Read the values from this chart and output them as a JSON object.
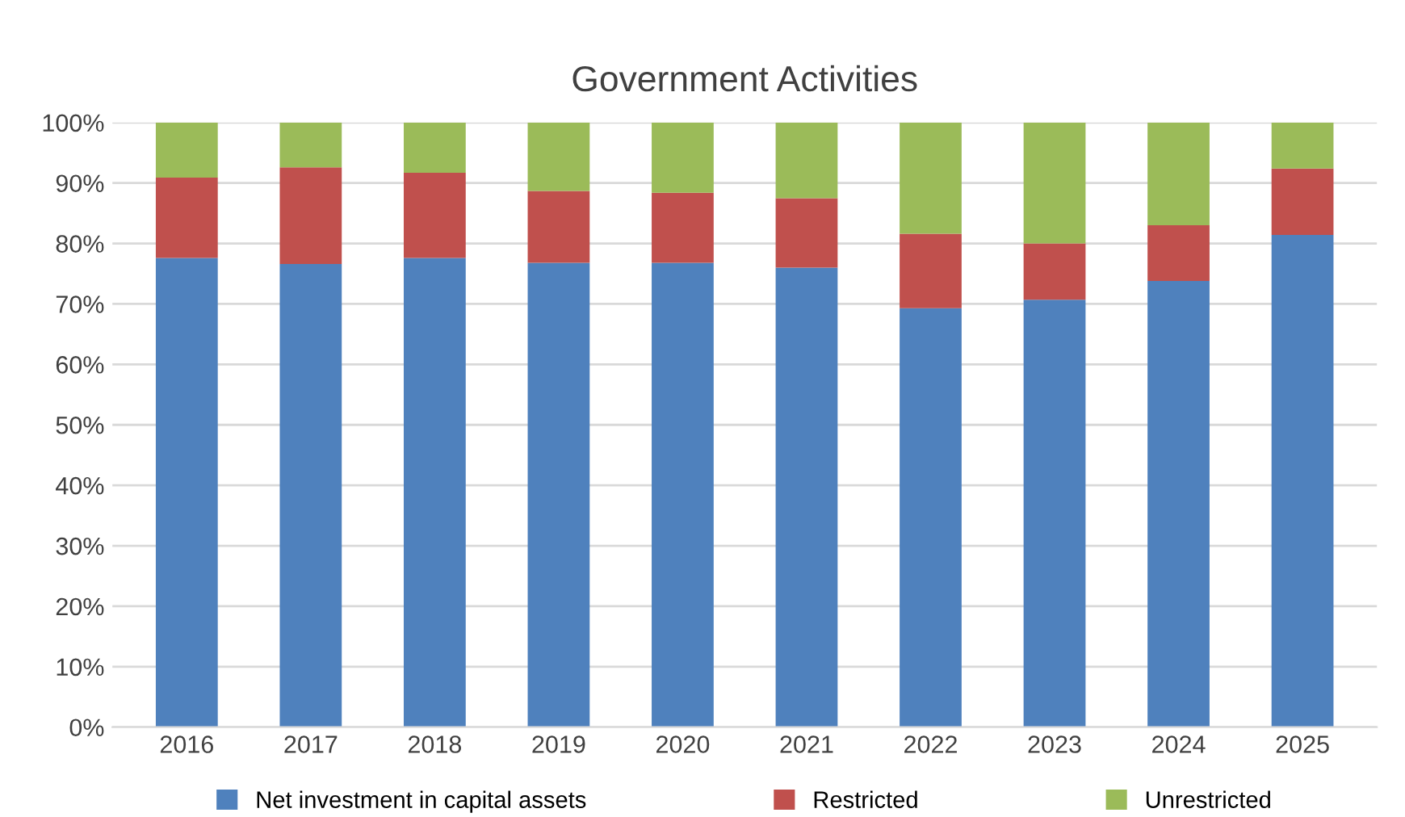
{
  "chart_data": {
    "type": "bar",
    "title": "Government Activities",
    "stacked": true,
    "categories": [
      "2016",
      "2017",
      "2018",
      "2019",
      "2020",
      "2021",
      "2022",
      "2023",
      "2024",
      "2025"
    ],
    "series": [
      {
        "name": "Net investment in capital assets",
        "color": "#4f81bd",
        "values": [
          77.6,
          76.6,
          77.6,
          76.8,
          76.8,
          76.0,
          69.3,
          70.7,
          73.8,
          81.4
        ]
      },
      {
        "name": "Restricted",
        "color": "#c0504d",
        "values": [
          13.3,
          16.0,
          14.1,
          11.9,
          11.6,
          11.5,
          12.3,
          9.3,
          9.2,
          11.0
        ]
      },
      {
        "name": "Unrestricted",
        "color": "#9bbb59",
        "values": [
          9.1,
          7.4,
          8.3,
          11.3,
          11.6,
          12.5,
          18.4,
          20.0,
          17.0,
          7.6
        ]
      }
    ],
    "ylim": [
      0,
      100
    ],
    "yticks": [
      {
        "value": 0,
        "label": "0%"
      },
      {
        "value": 10,
        "label": "10%"
      },
      {
        "value": 20,
        "label": "20%"
      },
      {
        "value": 30,
        "label": "30%"
      },
      {
        "value": 40,
        "label": "40%"
      },
      {
        "value": 50,
        "label": "50%"
      },
      {
        "value": 60,
        "label": "60%"
      },
      {
        "value": 70,
        "label": "70%"
      },
      {
        "value": 80,
        "label": "80%"
      },
      {
        "value": 90,
        "label": "90%"
      },
      {
        "value": 100,
        "label": "100%"
      }
    ],
    "grid": "y",
    "legend": "bottom"
  }
}
